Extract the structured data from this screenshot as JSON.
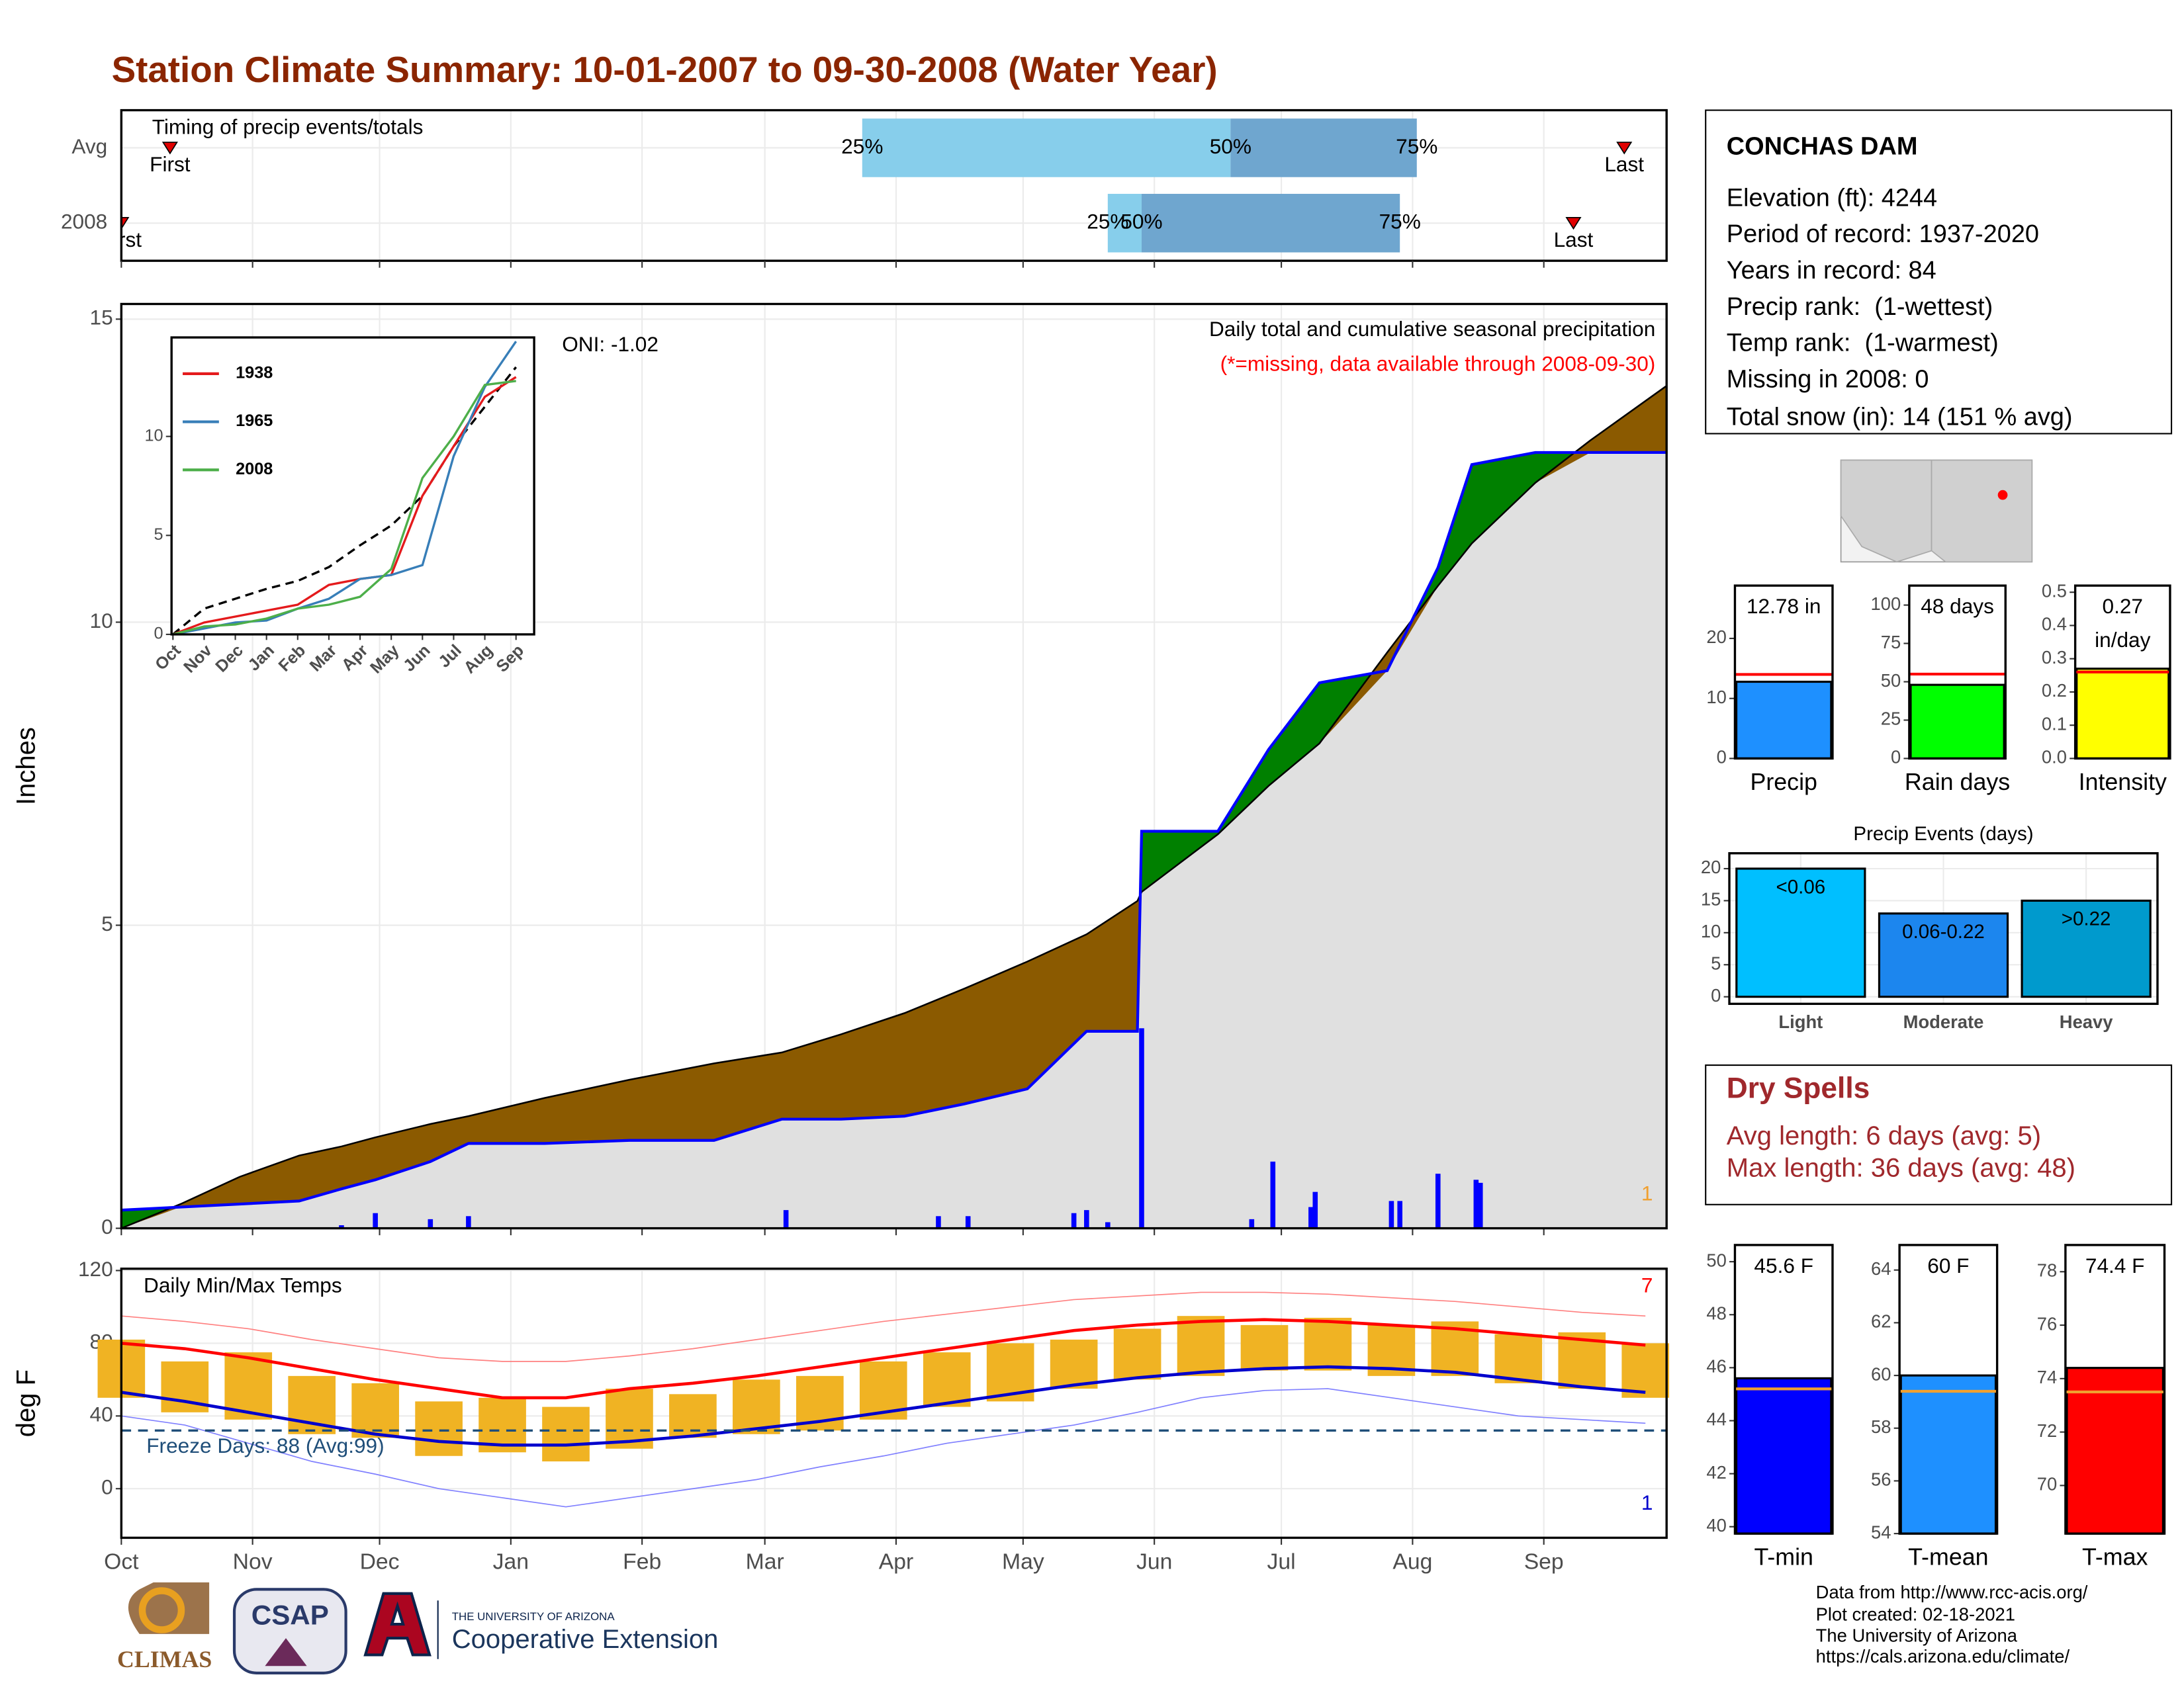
{
  "title": "Station Climate Summary: 10-01-2007 to 09-30-2008 (Water Year)",
  "chart_data": [
    {
      "type": "timeline",
      "title": "Timing of precip events/totals",
      "xlim": [
        0,
        365
      ],
      "xticks": [
        0,
        31,
        61,
        92,
        123,
        152,
        183,
        213,
        244,
        274,
        305,
        336
      ],
      "rows": [
        "Avg",
        "2008"
      ],
      "event_labels": [
        "First",
        "Last"
      ],
      "quantile_labels": [
        "25%",
        "50%",
        "75%"
      ],
      "series": [
        {
          "values": [
            11.5,
            175,
            262,
            306,
            355
          ]
        },
        {
          "values": [
            0,
            233,
            241,
            302,
            343
          ]
        }
      ],
      "colors": [
        "#87ceeb",
        "#6fa6cf"
      ],
      "marker_color": "#e00000"
    },
    {
      "type": "area",
      "title": "Daily total and cumulative seasonal precipitation",
      "subtitle": "(*=missing, data available through 2008-09-30)",
      "annotation": "ONI: -1.02",
      "corner_label": "1",
      "ylabel": "Inches",
      "xlim": [
        0,
        365
      ],
      "ylim": [
        0,
        15.25
      ],
      "yticks": [
        0,
        5,
        10,
        15
      ],
      "xticks": [
        0,
        31,
        61,
        92,
        123,
        152,
        183,
        213,
        244,
        274,
        305,
        336
      ],
      "grid": true,
      "x": [
        0,
        14,
        28,
        42,
        52,
        60,
        73,
        82,
        100,
        120,
        140,
        156,
        170,
        185,
        199,
        214,
        228,
        240,
        241,
        259,
        271,
        283,
        299,
        311,
        319,
        334,
        347,
        365
      ],
      "average": [
        0,
        0.4,
        0.85,
        1.2,
        1.35,
        1.5,
        1.72,
        1.85,
        2.15,
        2.45,
        2.72,
        2.9,
        3.2,
        3.55,
        3.95,
        4.4,
        4.85,
        5.4,
        5.55,
        6.5,
        7.3,
        8.0,
        9.5,
        10.6,
        11.3,
        12.3,
        13.0,
        13.9
      ],
      "observed": [
        0.3,
        0.35,
        0.4,
        0.45,
        0.65,
        0.8,
        1.1,
        1.4,
        1.4,
        1.45,
        1.45,
        1.8,
        1.8,
        1.85,
        2.05,
        2.3,
        3.25,
        3.25,
        6.55,
        6.55,
        7.9,
        9.0,
        9.2,
        10.9,
        12.6,
        12.8,
        12.8,
        12.8
      ],
      "daily": {
        "x": [
          52,
          60,
          73,
          82,
          157,
          193,
          200,
          225,
          228,
          233,
          241,
          267,
          272,
          281,
          282,
          300,
          302,
          311,
          320,
          321
        ],
        "values": [
          0.05,
          0.25,
          0.15,
          0.2,
          0.3,
          0.2,
          0.2,
          0.25,
          0.3,
          0.1,
          3.3,
          0.15,
          1.1,
          0.35,
          0.6,
          0.45,
          0.45,
          0.9,
          0.8,
          0.75
        ]
      },
      "below_color": "#8b5a00",
      "above_color": "#008000",
      "fill_color": "#e0e0e0",
      "line_color": "#0000ff"
    },
    {
      "type": "line",
      "categories": [
        "Oct",
        "Nov",
        "Dec",
        "Jan",
        "Feb",
        "Mar",
        "Apr",
        "May",
        "Jun",
        "Jul",
        "Aug",
        "Sep"
      ],
      "ylim": [
        0,
        15
      ],
      "yticks": [
        0,
        5,
        10
      ],
      "series": [
        {
          "name": "1938",
          "color": "#e41a1c",
          "values": [
            0,
            0.6,
            0.9,
            1.2,
            1.5,
            2.5,
            2.8,
            3.0,
            7.0,
            9.5,
            12.0,
            13.0
          ]
        },
        {
          "name": "1965",
          "color": "#377eb8",
          "values": [
            0,
            0.3,
            0.6,
            0.7,
            1.3,
            1.8,
            2.8,
            3.0,
            3.5,
            9.0,
            12.5,
            14.8
          ]
        },
        {
          "name": "2008",
          "color": "#4daf4a",
          "values": [
            0,
            0.4,
            0.5,
            0.8,
            1.3,
            1.5,
            1.9,
            3.3,
            7.9,
            10.0,
            12.6,
            12.8
          ]
        }
      ],
      "average": [
        0,
        1.3,
        1.8,
        2.3,
        2.7,
        3.4,
        4.5,
        5.5,
        7.0,
        9.5,
        11.5,
        13.5
      ]
    },
    {
      "type": "range",
      "title": "Daily Min/Max Temps",
      "ylabel": "deg F",
      "xlim": [
        0,
        365
      ],
      "ylim": [
        -27,
        121
      ],
      "yticks": [
        0,
        40,
        80,
        120
      ],
      "grid": true,
      "xticks": [
        {
          "value": 0,
          "label": "Oct"
        },
        {
          "value": 31,
          "label": "Nov"
        },
        {
          "value": 61,
          "label": "Dec"
        },
        {
          "value": 92,
          "label": "Jan"
        },
        {
          "value": 123,
          "label": "Feb"
        },
        {
          "value": 152,
          "label": "Mar"
        },
        {
          "value": 183,
          "label": "Apr"
        },
        {
          "value": 213,
          "label": "May"
        },
        {
          "value": 244,
          "label": "Jun"
        },
        {
          "value": 274,
          "label": "Jul"
        },
        {
          "value": 305,
          "label": "Aug"
        },
        {
          "value": 336,
          "label": "Sep"
        }
      ],
      "x": [
        0,
        15,
        30,
        45,
        60,
        75,
        90,
        105,
        120,
        135,
        150,
        165,
        180,
        195,
        210,
        225,
        240,
        255,
        270,
        285,
        300,
        315,
        330,
        345,
        360
      ],
      "max": [
        82,
        70,
        75,
        62,
        58,
        48,
        50,
        45,
        55,
        52,
        60,
        62,
        70,
        75,
        80,
        82,
        88,
        95,
        90,
        94,
        90,
        92,
        85,
        86,
        80
      ],
      "min": [
        50,
        42,
        38,
        30,
        28,
        18,
        20,
        15,
        22,
        28,
        30,
        32,
        38,
        45,
        48,
        55,
        60,
        62,
        65,
        65,
        62,
        62,
        58,
        55,
        50
      ],
      "normal_max": [
        80,
        77,
        72,
        66,
        60,
        55,
        50,
        50,
        55,
        58,
        62,
        67,
        72,
        77,
        82,
        87,
        90,
        92,
        93,
        92,
        90,
        88,
        85,
        82,
        79
      ],
      "normal_min": [
        53,
        48,
        42,
        36,
        30,
        26,
        24,
        24,
        26,
        29,
        33,
        37,
        42,
        47,
        52,
        57,
        61,
        64,
        66,
        67,
        66,
        64,
        60,
        56,
        53
      ],
      "record_max": [
        95,
        92,
        88,
        82,
        77,
        72,
        70,
        70,
        73,
        77,
        82,
        87,
        92,
        96,
        100,
        104,
        106,
        108,
        108,
        107,
        105,
        103,
        100,
        97,
        95
      ],
      "record_min": [
        40,
        35,
        25,
        15,
        8,
        0,
        -5,
        -10,
        -5,
        0,
        5,
        12,
        18,
        25,
        30,
        35,
        42,
        50,
        54,
        55,
        50,
        45,
        40,
        38,
        36
      ],
      "freeze_line": 32,
      "freeze_label": "Freeze Days: 88 (Avg:99)",
      "high_label": "7",
      "low_label": "1",
      "bar_color": "#f0b323"
    },
    {
      "type": "bar",
      "value": 12.78,
      "label": [
        "12.78 in"
      ],
      "xlabel": "Precip",
      "average": 14,
      "average_color": "#ff0000",
      "color": "#1e90ff",
      "ylim": [
        0,
        28.8
      ],
      "yticks": [
        0,
        10,
        20
      ]
    },
    {
      "type": "bar",
      "value": 48,
      "label": [
        "48 days"
      ],
      "xlabel": "Rain days",
      "average": 55,
      "average_color": "#ff0000",
      "color": "#00ff00",
      "ylim": [
        0,
        112.7
      ],
      "yticks": [
        0,
        25,
        50,
        75,
        100
      ]
    },
    {
      "type": "bar",
      "value": 0.27,
      "label": [
        "0.27",
        "in/day"
      ],
      "xlabel": "Intensity",
      "average": 0.26,
      "average_color": "#ff0000",
      "color": "#ffff00",
      "ylim": [
        0,
        0.52
      ],
      "yticks": [
        {
          "value": 0,
          "label": "0.0"
        },
        0.1,
        0.2,
        0.3,
        0.4,
        0.5
      ]
    },
    {
      "type": "bar",
      "title": "Precip Events (days)",
      "categories": [
        "Light",
        "Moderate",
        "Heavy"
      ],
      "values": [
        20,
        13,
        15
      ],
      "value_labels": [
        "<0.06",
        "0.06-0.22",
        ">0.22"
      ],
      "colors": [
        "#00bfff",
        "#1c86ee",
        "#009acd"
      ],
      "ylim": [
        -1.1,
        22.4
      ],
      "yticks": [
        0,
        5,
        10,
        15,
        20
      ],
      "grid": true
    },
    {
      "type": "bar",
      "value": 45.6,
      "label": [
        "45.6 F"
      ],
      "xlabel": "T-min",
      "average": 45.2,
      "average_color": "#f0a030",
      "color": "#0000ff",
      "ylim": [
        39.74,
        50.63
      ],
      "yticks": [
        40,
        42,
        44,
        46,
        48,
        50
      ]
    },
    {
      "type": "bar",
      "value": 60,
      "label": [
        "60 F"
      ],
      "xlabel": "T-mean",
      "average": 59.4,
      "average_color": "#f0a030",
      "color": "#1e90ff",
      "ylim": [
        54,
        64.95
      ],
      "yticks": [
        54,
        56,
        58,
        60,
        62,
        64
      ]
    },
    {
      "type": "bar",
      "value": 74.4,
      "label": [
        "74.4 F"
      ],
      "xlabel": "T-max",
      "average": 73.5,
      "average_color": "#f0a030",
      "color": "#ff0000",
      "ylim": [
        68.2,
        79
      ],
      "yticks": [
        70,
        72,
        74,
        76,
        78
      ]
    }
  ],
  "station": {
    "name": "CONCHAS DAM",
    "lines": [
      "Elevation (ft): 4244",
      "Period of record: 1937-2020",
      "Years in record: 84",
      "Precip rank:  (1-wettest)",
      "Temp rank:  (1-warmest)",
      "Missing in 2008: 0",
      "Total snow (in): 14 (151 % avg)"
    ]
  },
  "dry_spells": {
    "title": "Dry Spells",
    "lines": [
      "Avg length: 6 days (avg: 5)",
      "Max length: 36 days (avg: 48)"
    ]
  },
  "footer": [
    "Data from http://www.rcc-acis.org/",
    "Plot created: 02-18-2021",
    "The University of Arizona",
    "https://cals.arizona.edu/climate/"
  ],
  "logos": [
    "CLIMAS",
    "CSAP",
    "THE UNIVERSITY OF ARIZONA",
    "Cooperative Extension"
  ]
}
